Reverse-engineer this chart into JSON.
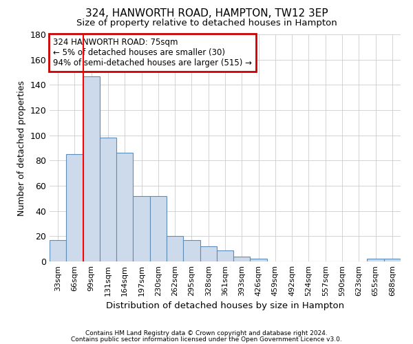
{
  "title1": "324, HANWORTH ROAD, HAMPTON, TW12 3EP",
  "title2": "Size of property relative to detached houses in Hampton",
  "xlabel": "Distribution of detached houses by size in Hampton",
  "ylabel": "Number of detached properties",
  "bin_labels": [
    "33sqm",
    "66sqm",
    "99sqm",
    "131sqm",
    "164sqm",
    "197sqm",
    "230sqm",
    "262sqm",
    "295sqm",
    "328sqm",
    "361sqm",
    "393sqm",
    "426sqm",
    "459sqm",
    "492sqm",
    "524sqm",
    "557sqm",
    "590sqm",
    "623sqm",
    "655sqm",
    "688sqm"
  ],
  "bar_values": [
    17,
    85,
    147,
    98,
    86,
    52,
    52,
    20,
    17,
    12,
    9,
    4,
    2,
    0,
    0,
    0,
    0,
    0,
    0,
    2,
    2
  ],
  "bar_color": "#cddaeb",
  "bar_edge_color": "#5b8db8",
  "red_line_x": 1.5,
  "annotation_line1": "324 HANWORTH ROAD: 75sqm",
  "annotation_line2": "← 5% of detached houses are smaller (30)",
  "annotation_line3": "94% of semi-detached houses are larger (515) →",
  "annotation_box_color": "#ffffff",
  "annotation_box_edge": "#cc0000",
  "ylim": [
    0,
    180
  ],
  "yticks": [
    0,
    20,
    40,
    60,
    80,
    100,
    120,
    140,
    160,
    180
  ],
  "footnote1": "Contains HM Land Registry data © Crown copyright and database right 2024.",
  "footnote2": "Contains public sector information licensed under the Open Government Licence v3.0.",
  "bg_color": "#ffffff",
  "plot_bg_color": "#ffffff",
  "grid_color": "#cccccc"
}
